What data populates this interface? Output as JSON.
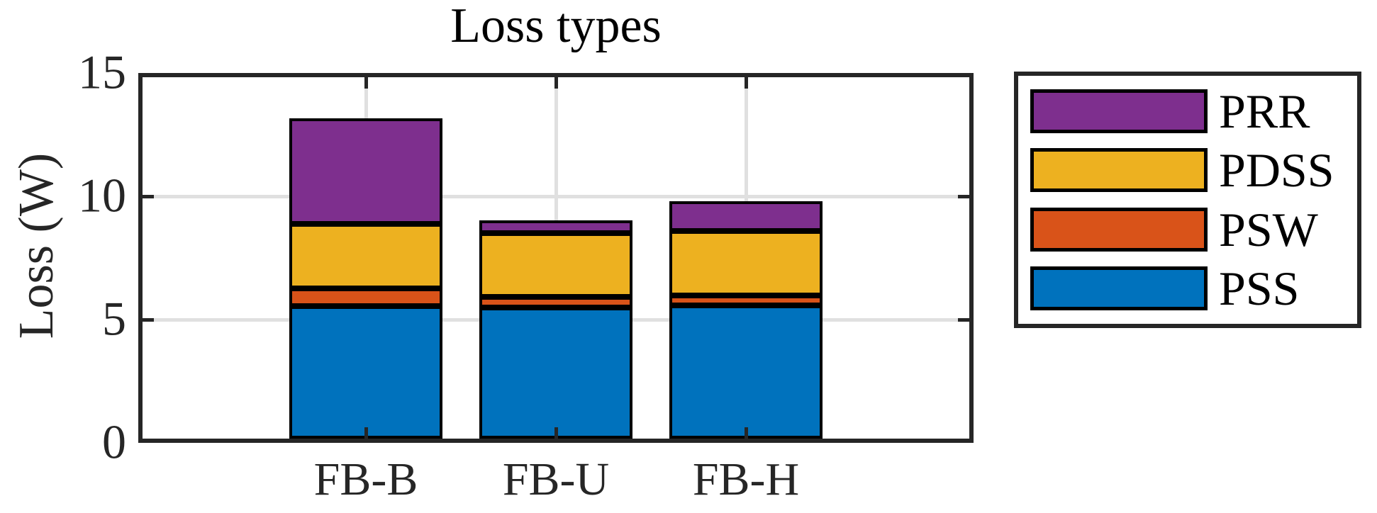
{
  "chart_data": {
    "type": "bar",
    "stacked": true,
    "title": "Loss types",
    "xlabel": "",
    "ylabel": "Loss (W)",
    "categories": [
      "FB-B",
      "FB-U",
      "FB-H"
    ],
    "series": [
      {
        "name": "PSS",
        "color": "#0072BD",
        "values": [
          5.37,
          5.31,
          5.4
        ]
      },
      {
        "name": "PSW",
        "color": "#D95319",
        "values": [
          0.72,
          0.43,
          0.4
        ]
      },
      {
        "name": "PDSS",
        "color": "#EDB120",
        "values": [
          2.61,
          2.59,
          2.61
        ]
      },
      {
        "name": "PRR",
        "color": "#7E2F8E",
        "values": [
          4.28,
          0.52,
          1.21
        ]
      }
    ],
    "totals": [
      12.98,
      8.85,
      9.62
    ],
    "ylim": [
      0,
      15
    ],
    "yticks": [
      0,
      5,
      10,
      15
    ],
    "ytick_labels": [
      "0",
      "5",
      "10",
      "15"
    ],
    "grid": true,
    "grid_values": [
      5,
      10
    ],
    "legend_position": "right-outside",
    "legend_order": [
      "PRR",
      "PDSS",
      "PSW",
      "PSS"
    ],
    "colors": {
      "axis": "#262626",
      "grid": "#e0e0e0",
      "bar_border": "#000000",
      "background": "#ffffff"
    }
  }
}
